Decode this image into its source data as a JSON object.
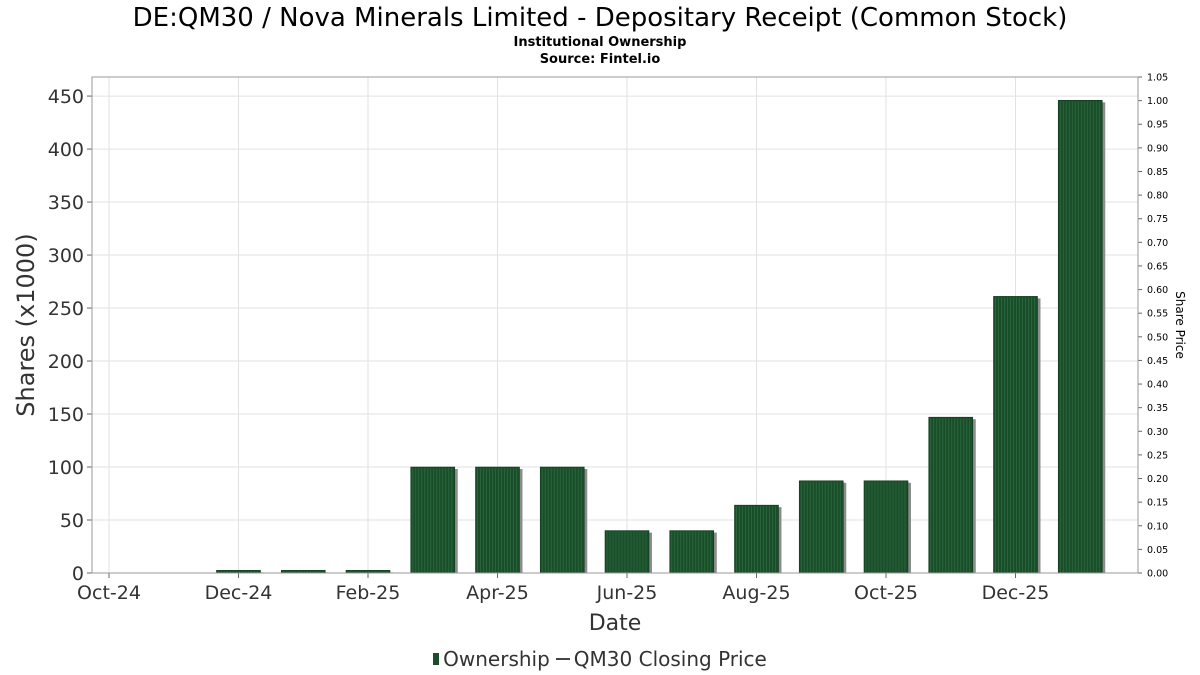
{
  "header": {
    "title": "DE:QM30 / Nova Minerals Limited - Depositary Receipt (Common Stock)",
    "subtitle": "Institutional Ownership",
    "source": "Source: Fintel.io"
  },
  "legend": {
    "ownership_label": "Ownership",
    "price_label": "QM30 Closing Price"
  },
  "chart_data": {
    "type": "bar",
    "title": "DE:QM30 / Nova Minerals Limited - Depositary Receipt (Common Stock)",
    "xlabel": "Date",
    "ylabel": "Shares (x1000)",
    "y2label": "Share Price",
    "ylim": [
      0,
      468
    ],
    "y2lim": [
      0,
      1.05
    ],
    "yticks": [
      "0",
      "50",
      "100",
      "150",
      "200",
      "250",
      "300",
      "350",
      "400",
      "450"
    ],
    "y2ticks": [
      "0.00",
      "0.05",
      "0.10",
      "0.15",
      "0.20",
      "0.25",
      "0.30",
      "0.35",
      "0.40",
      "0.45",
      "0.50",
      "0.55",
      "0.60",
      "0.65",
      "0.70",
      "0.75",
      "0.80",
      "0.85",
      "0.90",
      "0.95",
      "1.00",
      "1.05"
    ],
    "xticks": [
      "Oct-24",
      "Dec-24",
      "Feb-25",
      "Apr-25",
      "Jun-25",
      "Aug-25",
      "Oct-25",
      "Dec-25"
    ],
    "xmonth_range": [
      0,
      16
    ],
    "legend_position": "bottom-center",
    "grid": true,
    "series": [
      {
        "name": "Ownership",
        "color": "#1a4d2a",
        "months": [
          2,
          3,
          4,
          5,
          6,
          7,
          8,
          9,
          10,
          11,
          12,
          13,
          14,
          15
        ],
        "values": [
          2.5,
          2.5,
          2.5,
          100,
          100,
          100,
          40,
          40,
          64,
          87,
          87,
          147,
          261,
          446
        ]
      },
      {
        "name": "QM30 Closing Price",
        "color": "#444444",
        "values": []
      }
    ]
  }
}
